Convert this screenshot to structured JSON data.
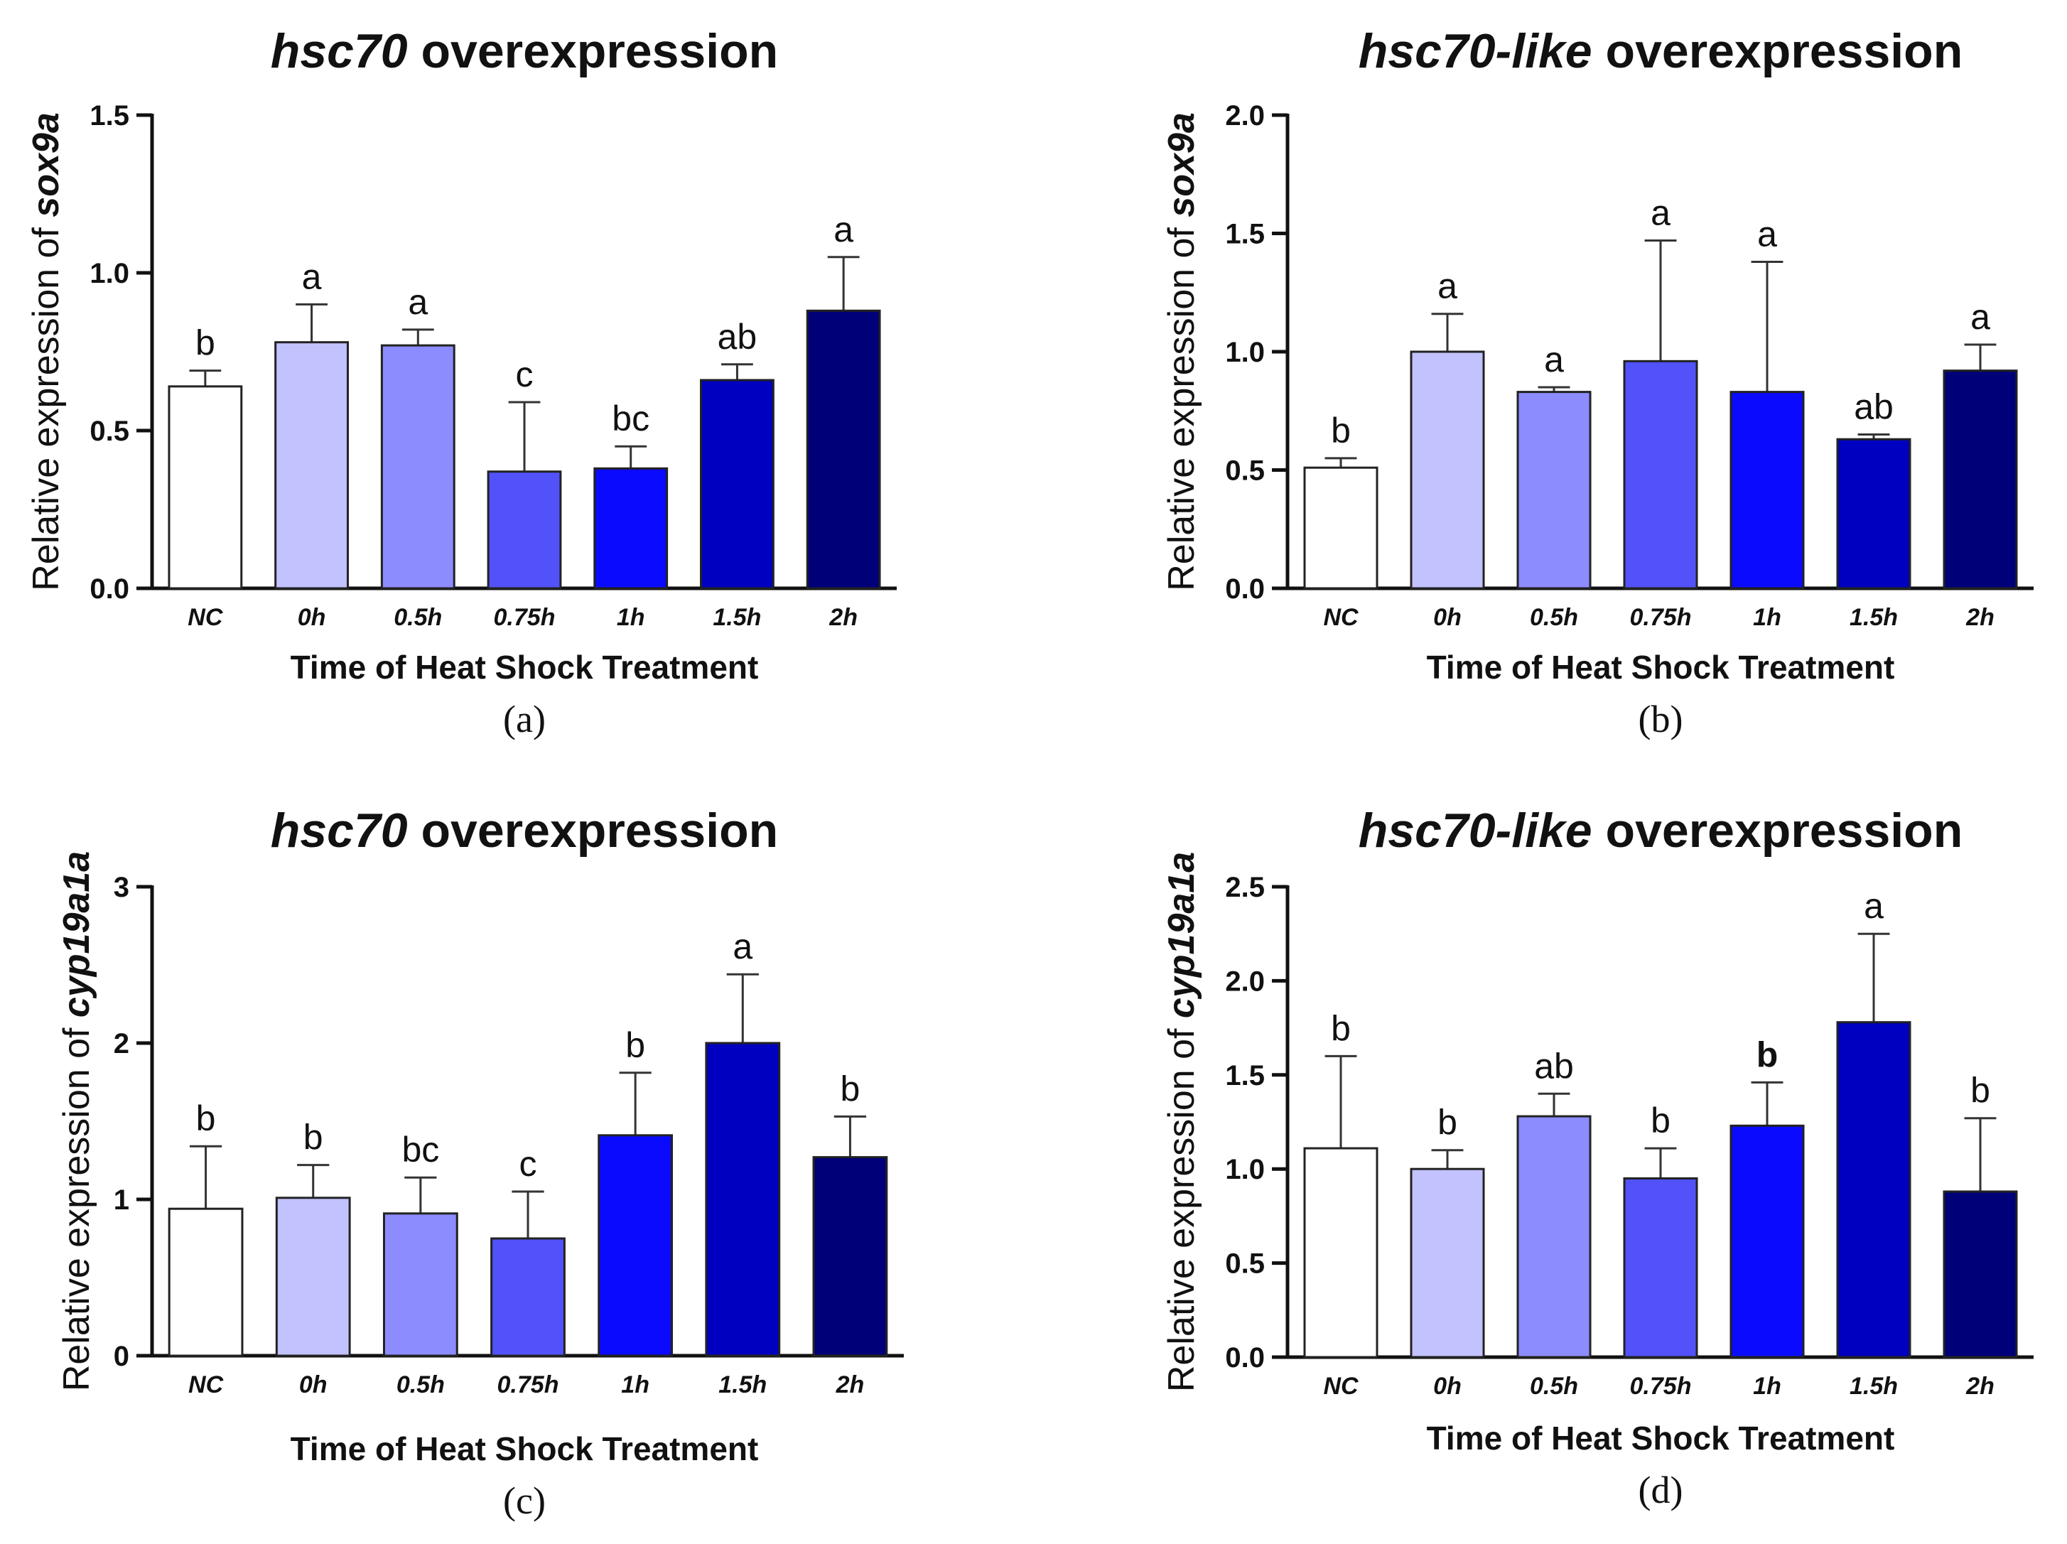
{
  "chart_data": [
    {
      "id": "a",
      "type": "bar",
      "title": {
        "gene": "hsc70",
        "rest": " overexpression"
      },
      "ylabel": {
        "prefix": "Relative expression of ",
        "gene": "sox9a"
      },
      "xlabel": "Time of Heat Shock Treatment",
      "caption": "(a)",
      "ylim": [
        0,
        1.5
      ],
      "yticks": [
        "0.0",
        "0.5",
        "1.0",
        "1.5"
      ],
      "categories": [
        "NC",
        "0h",
        "0.5h",
        "0.75h",
        "1h",
        "1.5h",
        "2h"
      ],
      "values": [
        0.64,
        0.78,
        0.77,
        0.37,
        0.38,
        0.66,
        0.88
      ],
      "errors": [
        0.05,
        0.12,
        0.05,
        0.22,
        0.07,
        0.05,
        0.17
      ],
      "letters": [
        "b",
        "a",
        "a",
        "c",
        "bc",
        "ab",
        "a"
      ],
      "bold_letters": [
        false,
        false,
        false,
        false,
        false,
        false,
        false
      ],
      "colors": [
        "#ffffff",
        "#c2c2ff",
        "#8c8cff",
        "#5252fa",
        "#0a0aff",
        "#0000c0",
        "#000078"
      ]
    },
    {
      "id": "b",
      "type": "bar",
      "title": {
        "gene": "hsc70-like",
        "rest": " overexpression"
      },
      "ylabel": {
        "prefix": "Relative expression of ",
        "gene": "sox9a"
      },
      "xlabel": "Time of Heat Shock Treatment",
      "caption": "(b)",
      "ylim": [
        0,
        2.0
      ],
      "yticks": [
        "0.0",
        "0.5",
        "1.0",
        "1.5",
        "2.0"
      ],
      "categories": [
        "NC",
        "0h",
        "0.5h",
        "0.75h",
        "1h",
        "1.5h",
        "2h"
      ],
      "values": [
        0.51,
        1.0,
        0.83,
        0.96,
        0.83,
        0.63,
        0.92
      ],
      "errors": [
        0.04,
        0.16,
        0.02,
        0.51,
        0.55,
        0.02,
        0.11
      ],
      "letters": [
        "b",
        "a",
        "a",
        "a",
        "a",
        "ab",
        "a"
      ],
      "bold_letters": [
        false,
        false,
        false,
        false,
        false,
        false,
        false
      ],
      "colors": [
        "#ffffff",
        "#c2c2ff",
        "#8c8cff",
        "#5252fa",
        "#0a0aff",
        "#0000c0",
        "#000078"
      ]
    },
    {
      "id": "c",
      "type": "bar",
      "title": {
        "gene": "hsc70",
        "rest": " overexpression"
      },
      "ylabel": {
        "prefix": "Relative expression of ",
        "gene": "cyp19a1a"
      },
      "xlabel": "Time of Heat Shock Treatment",
      "caption": "(c)",
      "ylim": [
        0,
        3
      ],
      "yticks": [
        "0",
        "1",
        "2",
        "3"
      ],
      "categories": [
        "NC",
        "0h",
        "0.5h",
        "0.75h",
        "1h",
        "1.5h",
        "2h"
      ],
      "values": [
        0.94,
        1.01,
        0.91,
        0.75,
        1.41,
        2.0,
        1.27
      ],
      "errors": [
        0.4,
        0.21,
        0.23,
        0.3,
        0.4,
        0.44,
        0.26
      ],
      "letters": [
        "b",
        "b",
        "bc",
        "c",
        "b",
        "a",
        "b"
      ],
      "bold_letters": [
        false,
        false,
        false,
        false,
        false,
        false,
        false
      ],
      "colors": [
        "#ffffff",
        "#c2c2ff",
        "#8c8cff",
        "#5252fa",
        "#0a0aff",
        "#0000c0",
        "#000078"
      ]
    },
    {
      "id": "d",
      "type": "bar",
      "title": {
        "gene": "hsc70-like",
        "rest": " overexpression"
      },
      "ylabel": {
        "prefix": "Relative expression of ",
        "gene": "cyp19a1a"
      },
      "xlabel": "Time of Heat Shock Treatment",
      "caption": "(d)",
      "ylim": [
        0,
        2.5
      ],
      "yticks": [
        "0.0",
        "0.5",
        "1.0",
        "1.5",
        "2.0",
        "2.5"
      ],
      "categories": [
        "NC",
        "0h",
        "0.5h",
        "0.75h",
        "1h",
        "1.5h",
        "2h"
      ],
      "values": [
        1.11,
        1.0,
        1.28,
        0.95,
        1.23,
        1.78,
        0.88
      ],
      "errors": [
        0.49,
        0.1,
        0.12,
        0.16,
        0.23,
        0.47,
        0.39
      ],
      "letters": [
        "b",
        "b",
        "ab",
        "b",
        "b",
        "a",
        "b"
      ],
      "bold_letters": [
        false,
        false,
        false,
        false,
        true,
        false,
        false
      ],
      "colors": [
        "#ffffff",
        "#c2c2ff",
        "#8c8cff",
        "#5252fa",
        "#0a0aff",
        "#0000c0",
        "#000078"
      ]
    }
  ]
}
